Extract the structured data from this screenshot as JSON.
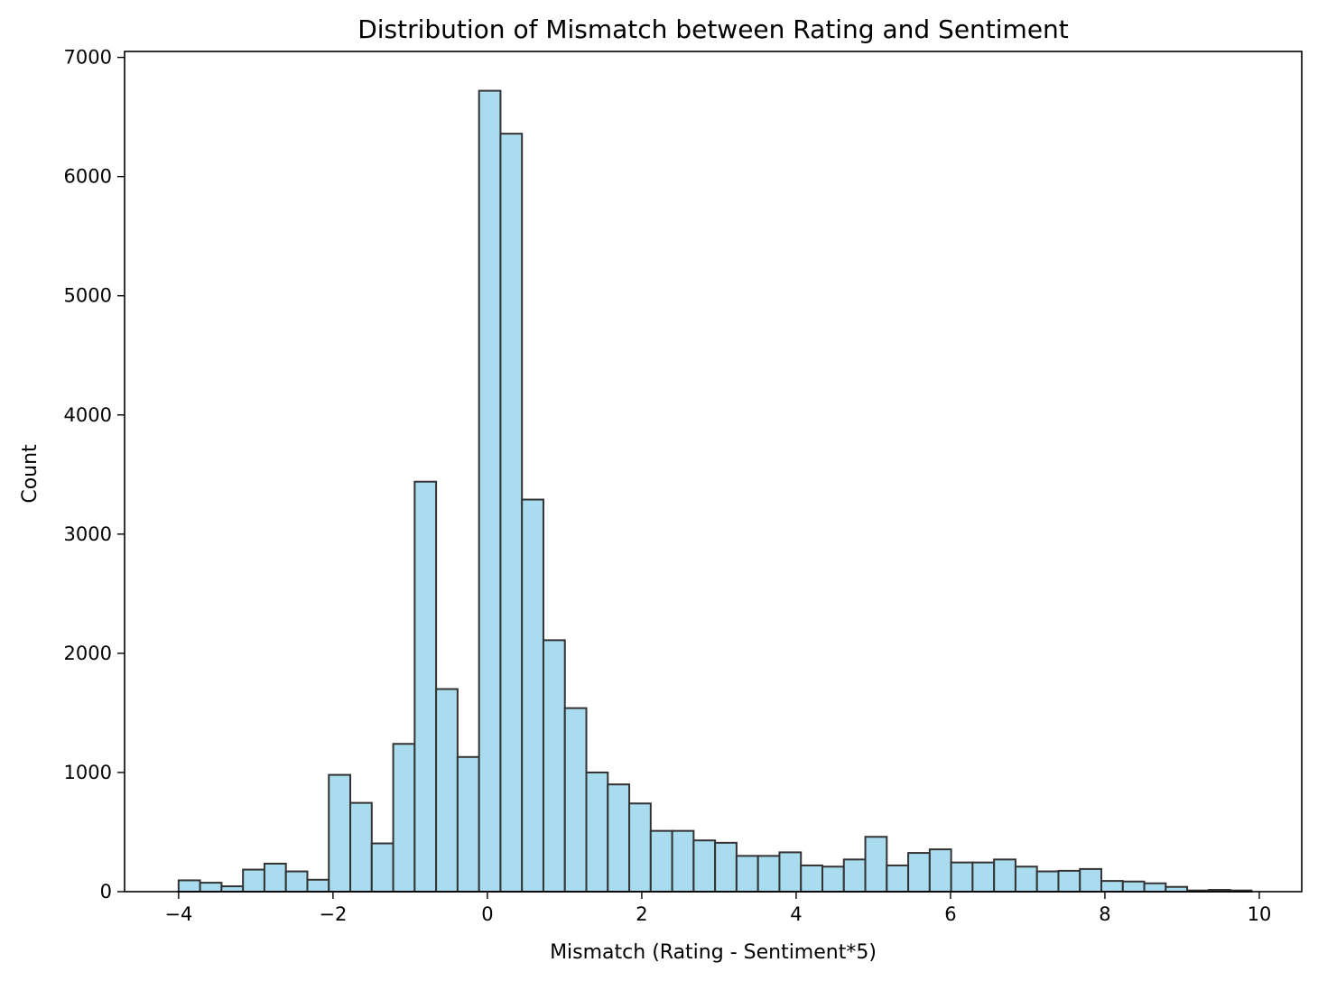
{
  "chart_data": {
    "type": "bar",
    "title": "Distribution of Mismatch between Rating and Sentiment",
    "xlabel": "Mismatch (Rating - Sentiment*5)",
    "ylabel": "Count",
    "xlim": [
      -4.7,
      10.55
    ],
    "ylim": [
      0,
      7050
    ],
    "xticks": [
      -4,
      -2,
      0,
      2,
      4,
      6,
      8,
      10
    ],
    "xtick_labels": [
      "−4",
      "−2",
      "0",
      "2",
      "4",
      "6",
      "8",
      "10"
    ],
    "yticks": [
      0,
      1000,
      2000,
      3000,
      4000,
      5000,
      6000,
      7000
    ],
    "ytick_labels": [
      "0",
      "1000",
      "2000",
      "3000",
      "4000",
      "5000",
      "6000",
      "7000"
    ],
    "bar_color": "#a8dcee",
    "edge_color": "#333333",
    "grid": false,
    "bin_start": -4.0,
    "bin_width": 0.278,
    "values": [
      95,
      75,
      45,
      185,
      235,
      170,
      100,
      980,
      745,
      405,
      1240,
      3440,
      1700,
      1130,
      6720,
      6360,
      3290,
      2110,
      1540,
      1000,
      900,
      740,
      510,
      510,
      430,
      410,
      300,
      300,
      330,
      220,
      210,
      270,
      460,
      220,
      325,
      355,
      245,
      245,
      270,
      210,
      170,
      175,
      190,
      90,
      85,
      70,
      40,
      10,
      15,
      10
    ]
  }
}
